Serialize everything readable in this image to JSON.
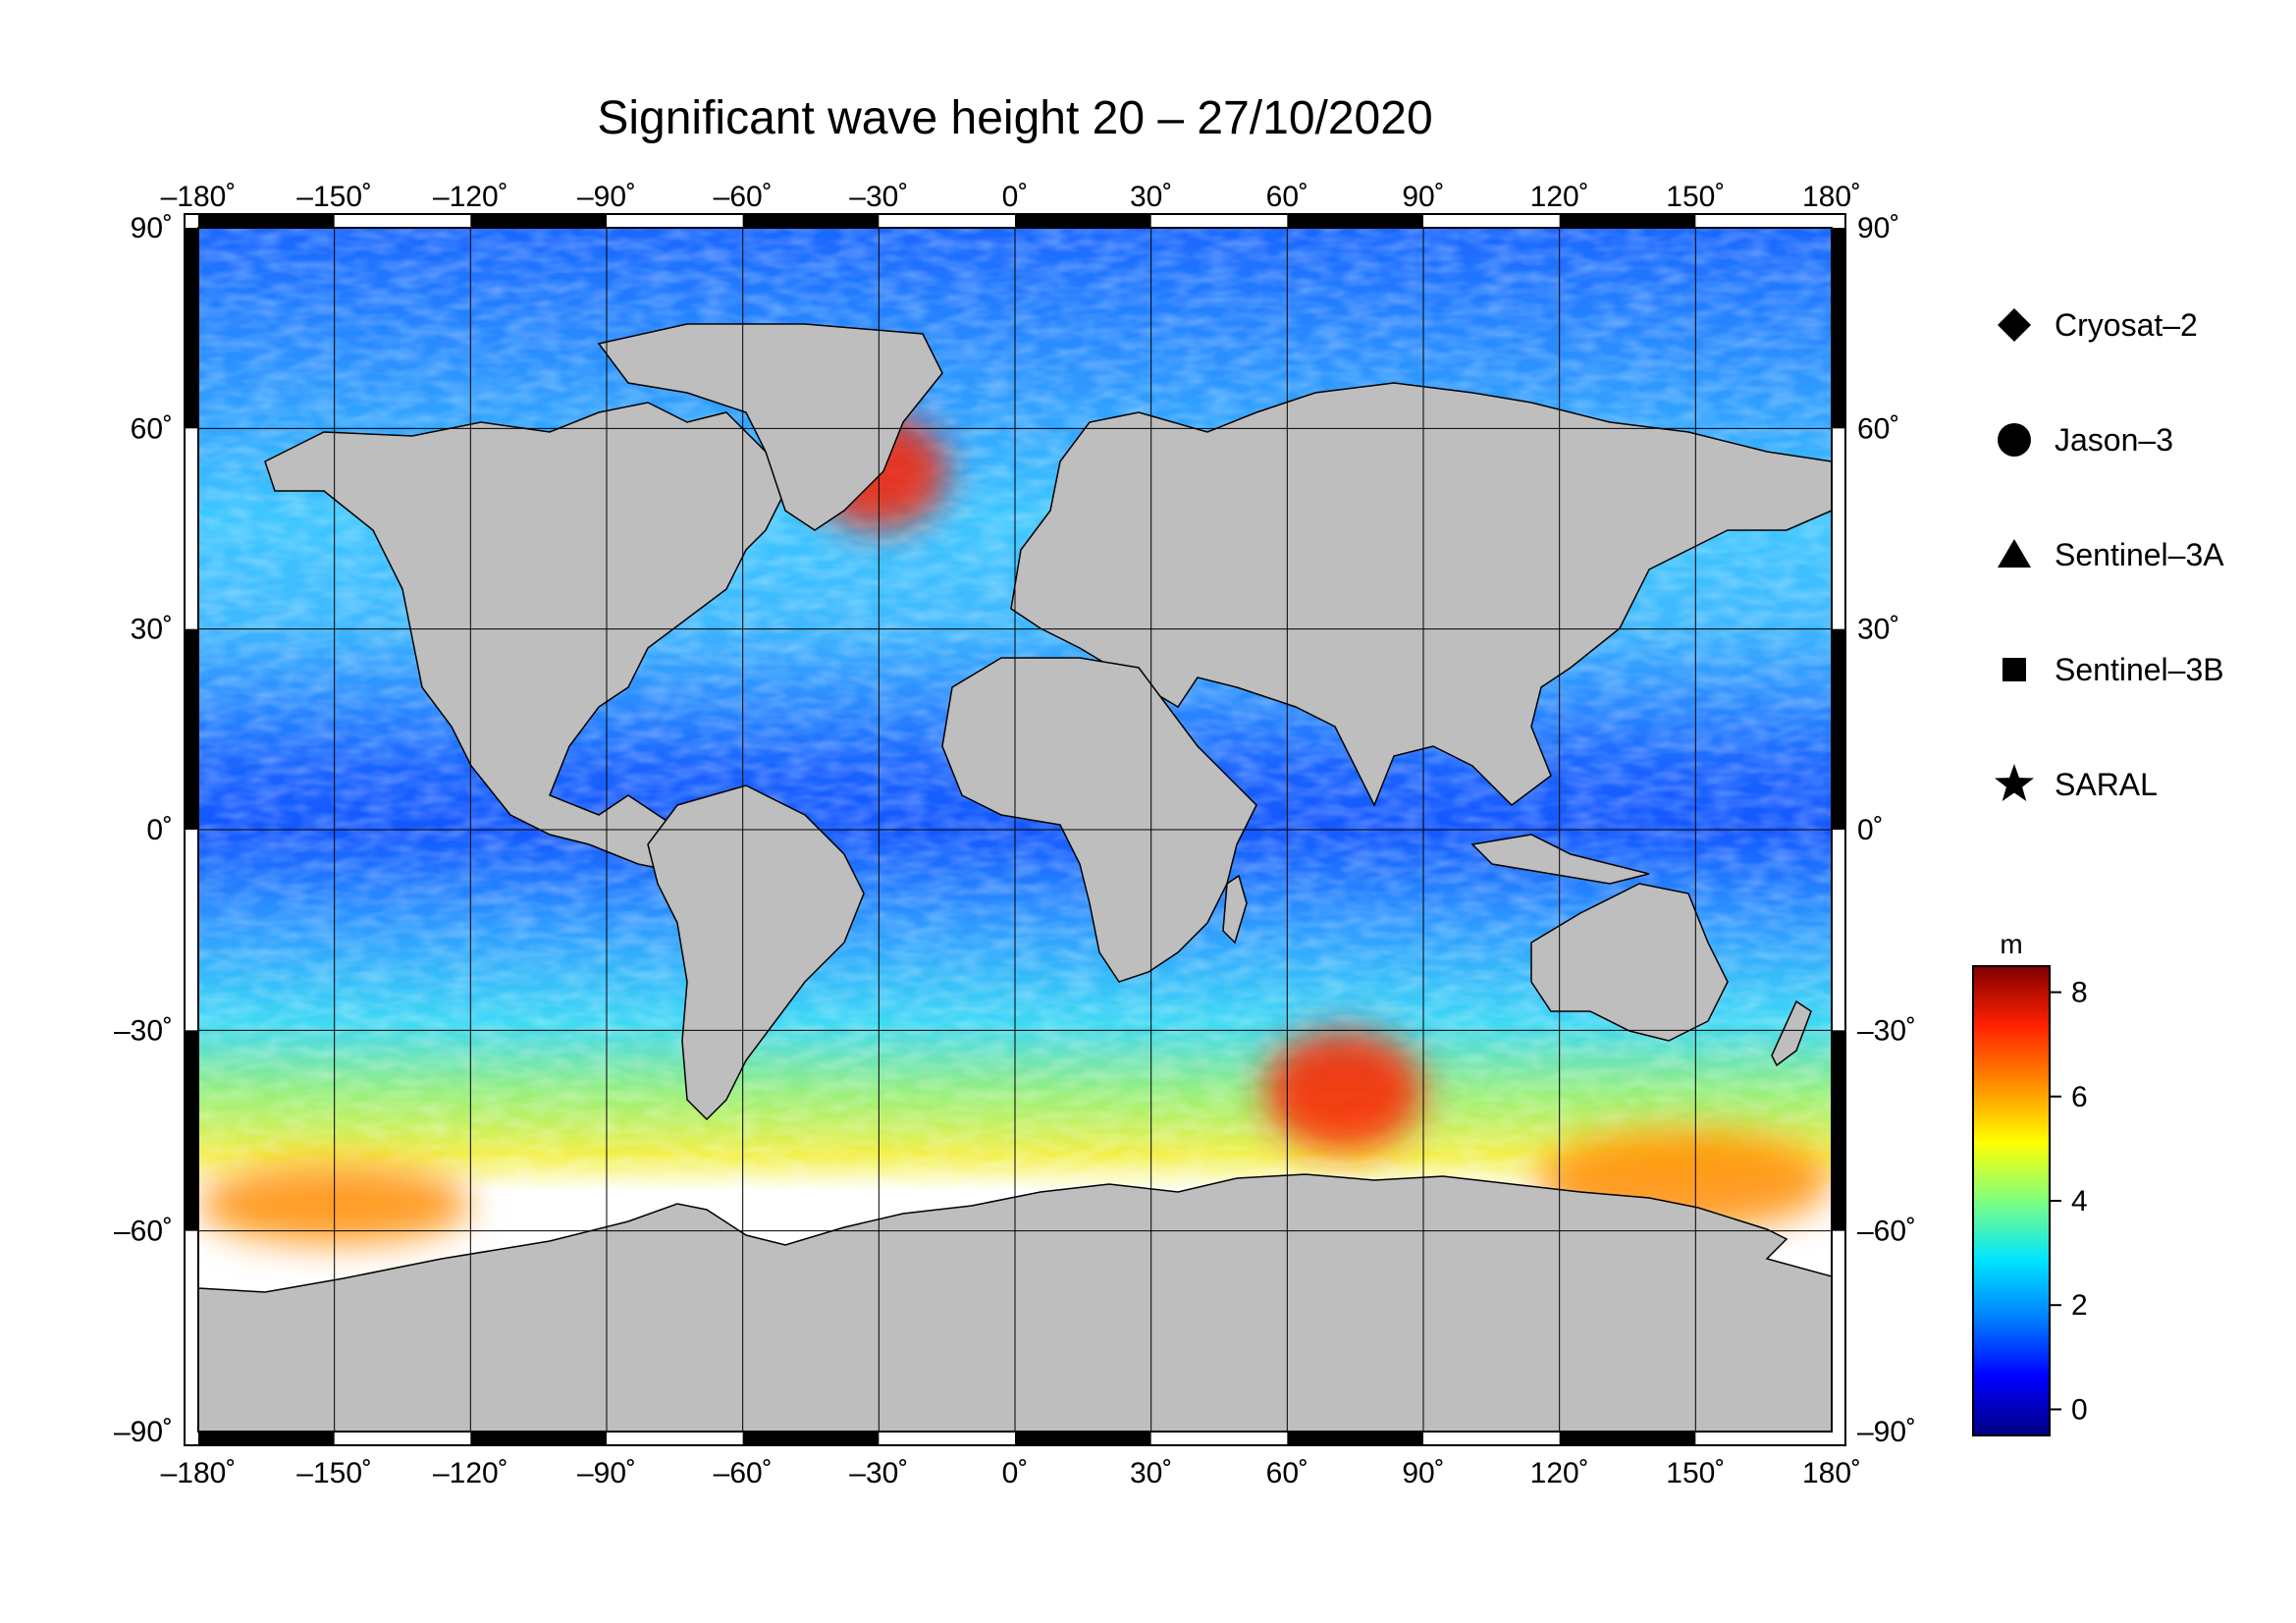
{
  "title": "Significant wave height 20 – 27/10/2020",
  "map": {
    "projection": "equirectangular",
    "lon_range": [
      -180,
      180
    ],
    "lat_range": [
      -90,
      90
    ],
    "lon_ticks": [
      -180,
      -150,
      -120,
      -90,
      -60,
      -30,
      0,
      30,
      60,
      90,
      120,
      150,
      180
    ],
    "lat_ticks": [
      90,
      60,
      30,
      0,
      -30,
      -60,
      -90
    ],
    "lon_tick_labels": [
      "–180˚",
      "–150˚",
      "–120˚",
      "–90˚",
      "–60˚",
      "–30˚",
      "0˚",
      "30˚",
      "60˚",
      "90˚",
      "120˚",
      "150˚",
      "180˚"
    ],
    "lat_tick_labels": [
      "90˚",
      "60˚",
      "30˚",
      "0˚",
      "–30˚",
      "–60˚",
      "–90˚"
    ],
    "grid": true,
    "land_color": "#bebebe",
    "sea_ice_color": "#ffffff",
    "swh_high_regions_m": [
      {
        "region": "North Atlantic",
        "lon": [
          -45,
          -15
        ],
        "lat": [
          45,
          62
        ],
        "value": 7.5
      },
      {
        "region": "Southern Ocean (Indian sector)",
        "lon": [
          55,
          90
        ],
        "lat": [
          -48,
          -30
        ],
        "value": 7.0
      },
      {
        "region": "Southern Ocean (Pacific sector)",
        "lon": [
          -180,
          -120
        ],
        "lat": [
          -62,
          -50
        ],
        "value": 6.5
      },
      {
        "region": "Southern Ocean (south of Australia)",
        "lon": [
          115,
          180
        ],
        "lat": [
          -60,
          -45
        ],
        "value": 6.0
      }
    ]
  },
  "legend": {
    "items": [
      {
        "label": "Cryosat–2",
        "marker": "diamond"
      },
      {
        "label": "Jason–3",
        "marker": "circle"
      },
      {
        "label": "Sentinel–3A",
        "marker": "triangle"
      },
      {
        "label": "Sentinel–3B",
        "marker": "square"
      },
      {
        "label": "SARAL",
        "marker": "star"
      }
    ]
  },
  "colorbar": {
    "unit": "m",
    "range": [
      -0.5,
      8.5
    ],
    "ticks": [
      0,
      2,
      4,
      6,
      8
    ],
    "tick_labels": [
      "0",
      "2",
      "4",
      "6",
      "8"
    ],
    "colormap": "jet",
    "stops": [
      "#000080",
      "#0000ff",
      "#0080ff",
      "#00e5ff",
      "#7fff7f",
      "#ffff00",
      "#ff8c00",
      "#ff2000",
      "#800000"
    ]
  }
}
